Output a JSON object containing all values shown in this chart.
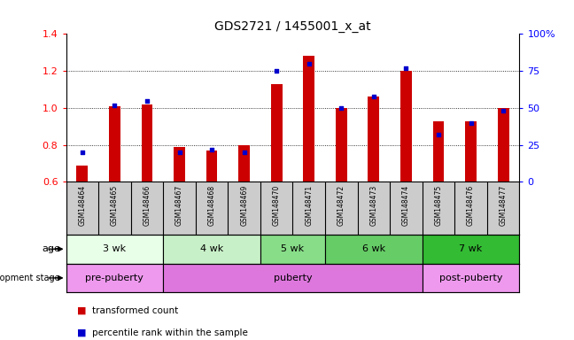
{
  "title": "GDS2721 / 1455001_x_at",
  "samples": [
    "GSM148464",
    "GSM148465",
    "GSM148466",
    "GSM148467",
    "GSM148468",
    "GSM148469",
    "GSM148470",
    "GSM148471",
    "GSM148472",
    "GSM148473",
    "GSM148474",
    "GSM148475",
    "GSM148476",
    "GSM148477"
  ],
  "transformed_count": [
    0.69,
    1.01,
    1.02,
    0.79,
    0.77,
    0.8,
    1.13,
    1.28,
    1.0,
    1.06,
    1.2,
    0.93,
    0.93,
    1.0
  ],
  "percentile_rank": [
    20,
    52,
    55,
    20,
    22,
    20,
    75,
    80,
    50,
    58,
    77,
    32,
    40,
    48
  ],
  "ylim_left": [
    0.6,
    1.4
  ],
  "ylim_right": [
    0,
    100
  ],
  "yticks_left": [
    0.6,
    0.8,
    1.0,
    1.2,
    1.4
  ],
  "yticks_right": [
    0,
    25,
    50,
    75,
    100
  ],
  "ytick_labels_right": [
    "0",
    "25",
    "50",
    "75",
    "100%"
  ],
  "bar_color": "#cc0000",
  "dot_color": "#0000cc",
  "age_groups": [
    {
      "label": "3 wk",
      "start": 0,
      "end": 3,
      "color": "#e8ffe8"
    },
    {
      "label": "4 wk",
      "start": 3,
      "end": 6,
      "color": "#c8f0c8"
    },
    {
      "label": "5 wk",
      "start": 6,
      "end": 8,
      "color": "#88dd88"
    },
    {
      "label": "6 wk",
      "start": 8,
      "end": 11,
      "color": "#66cc66"
    },
    {
      "label": "7 wk",
      "start": 11,
      "end": 14,
      "color": "#33bb33"
    }
  ],
  "dev_groups": [
    {
      "label": "pre-puberty",
      "start": 0,
      "end": 3,
      "color": "#ee99ee"
    },
    {
      "label": "puberty",
      "start": 3,
      "end": 11,
      "color": "#dd77dd"
    },
    {
      "label": "post-puberty",
      "start": 11,
      "end": 14,
      "color": "#ee99ee"
    }
  ],
  "legend_items": [
    {
      "color": "#cc0000",
      "label": "transformed count"
    },
    {
      "color": "#0000cc",
      "label": "percentile rank within the sample"
    }
  ],
  "tick_bg_color": "#cccccc",
  "gridline_color": "black",
  "gridline_lw": 0.6,
  "gridline_style": "dotted",
  "gridlines_at": [
    0.8,
    1.0,
    1.2
  ],
  "bar_width": 0.35
}
